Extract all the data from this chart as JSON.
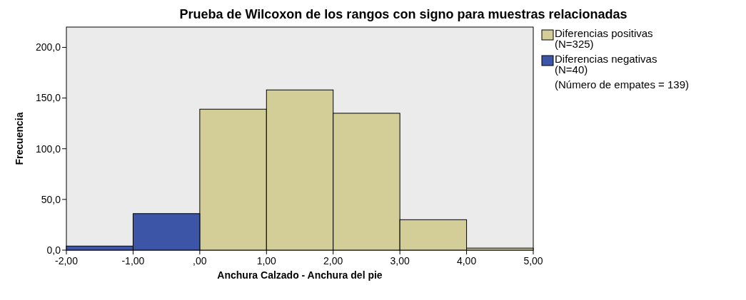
{
  "chart_data": {
    "type": "histogram",
    "title": "Prueba de Wilcoxon de los rangos con signo para muestras relacionadas",
    "xlabel": "Anchura Calzado - Anchura del pie",
    "ylabel": "Frecuencia",
    "bins": [
      -2,
      -1,
      0,
      1,
      2,
      3,
      4,
      5
    ],
    "series": [
      {
        "name": "Diferencias positivas (N=325)",
        "color": "#d3ce97",
        "values": [
          null,
          null,
          139,
          158,
          135,
          30,
          2
        ]
      },
      {
        "name": "Diferencias negativas (N=40)",
        "color": "#3d55a6",
        "values": [
          4,
          36,
          null,
          null,
          null,
          null,
          null
        ]
      }
    ],
    "xlim": [
      -2,
      5
    ],
    "xticks": [
      {
        "value": -2,
        "label": "-2,00"
      },
      {
        "value": -1,
        "label": "-1,00"
      },
      {
        "value": 0,
        "label": ",00"
      },
      {
        "value": 1,
        "label": "1,00"
      },
      {
        "value": 2,
        "label": "2,00"
      },
      {
        "value": 3,
        "label": "3,00"
      },
      {
        "value": 4,
        "label": "4,00"
      },
      {
        "value": 5,
        "label": "5,00"
      }
    ],
    "ylim": [
      0,
      220
    ],
    "yticks": [
      {
        "value": 0,
        "label": "0,0"
      },
      {
        "value": 50,
        "label": "50,0"
      },
      {
        "value": 100,
        "label": "100,0"
      },
      {
        "value": 150,
        "label": "150,0"
      },
      {
        "value": 200,
        "label": "200,0"
      }
    ],
    "legend": "right",
    "annotations": [
      "(Número de empates = 139)"
    ]
  }
}
